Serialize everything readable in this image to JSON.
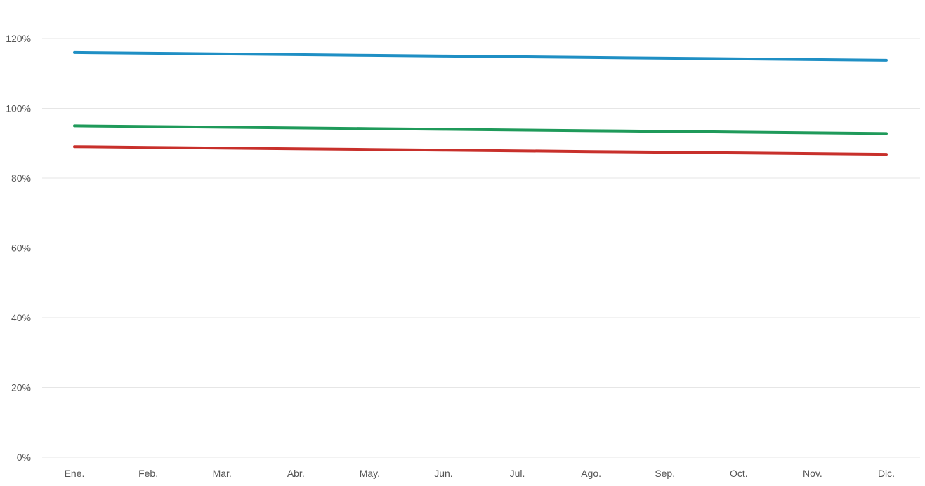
{
  "chart_data": {
    "type": "line",
    "title": "",
    "xlabel": "",
    "ylabel": "",
    "categories": [
      "Ene.",
      "Feb.",
      "Mar.",
      "Abr.",
      "May.",
      "Jun.",
      "Jul.",
      "Ago.",
      "Sep.",
      "Oct.",
      "Nov.",
      "Dic."
    ],
    "y_ticks": [
      "0%",
      "20%",
      "40%",
      "60%",
      "80%",
      "100%",
      "120%"
    ],
    "y_tick_values": [
      0,
      20,
      40,
      60,
      80,
      100,
      120
    ],
    "ylim": [
      0,
      120
    ],
    "grid": true,
    "legend": "none",
    "series": [
      {
        "color": "#1f8fc4",
        "values": [
          116,
          115.8,
          115.6,
          115.4,
          115.2,
          115,
          114.8,
          114.6,
          114.4,
          114.2,
          114,
          113.8
        ]
      },
      {
        "color": "#1f9a5a",
        "values": [
          95,
          94.8,
          94.6,
          94.4,
          94.2,
          94,
          93.8,
          93.6,
          93.4,
          93.2,
          93,
          92.8
        ]
      },
      {
        "color": "#c8302b",
        "values": [
          89,
          88.8,
          88.6,
          88.4,
          88.2,
          88,
          87.8,
          87.6,
          87.4,
          87.2,
          87,
          86.8
        ]
      }
    ]
  }
}
